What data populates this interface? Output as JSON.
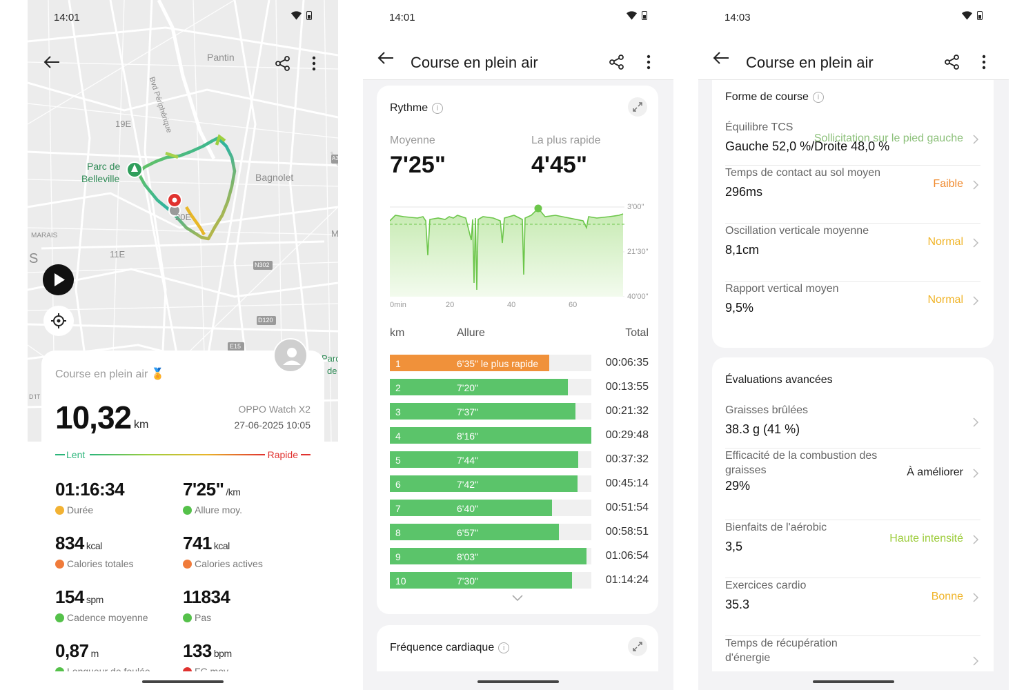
{
  "status": {
    "p1_time": "14:01",
    "p2_time": "14:01",
    "p3_time": "14:03"
  },
  "screen1": {
    "map_labels": {
      "pantin": "Pantin",
      "blvd": "Bvd Périphérique",
      "e19": "19E",
      "parc": "Parc de",
      "belleville": "Belleville",
      "bagnolet": "Bagnolet",
      "e20": "20E",
      "marais": "MARAIS",
      "s": "S",
      "e11": "11E",
      "n302": "N302",
      "d120": "D120",
      "e15": "E15",
      "m": "M",
      "a3": "A3",
      "parc_r": "Parc",
      "de_r": "de",
      "dit": "D'IT"
    },
    "card": {
      "title": "Course en plein air",
      "distance": "10,32",
      "distance_unit": "km",
      "device": "OPPO Watch X2",
      "date": "27-06-2025 10:05",
      "slow": "Lent",
      "fast": "Rapide"
    },
    "stats": [
      {
        "value": "01:16:34",
        "unit": "",
        "label": "Durée",
        "icon": "medal-icon",
        "color": "#f2b233"
      },
      {
        "value": "7'25\"",
        "unit": "/km",
        "label": "Allure moy.",
        "icon": "check-icon",
        "color": "#55c14a"
      },
      {
        "value": "834",
        "unit": "kcal",
        "label": "Calories totales",
        "icon": "flame-icon",
        "color": "#f07b3a"
      },
      {
        "value": "741",
        "unit": "kcal",
        "label": "Calories actives",
        "icon": "flame-icon",
        "color": "#f07b3a"
      },
      {
        "value": "154",
        "unit": "spm",
        "label": "Cadence moyenne",
        "icon": "footsteps-icon",
        "color": "#55c14a"
      },
      {
        "value": "11834",
        "unit": "",
        "label": "Pas",
        "icon": "shoe-icon",
        "color": "#55c14a"
      },
      {
        "value": "0,87",
        "unit": "m",
        "label": "Longueur de foulée",
        "icon": "ruler-icon",
        "color": "#55c14a"
      },
      {
        "value": "133",
        "unit": "bpm",
        "label": "FC moy.",
        "icon": "heart-icon",
        "color": "#e0322f"
      }
    ]
  },
  "screen2": {
    "title": "Course en plein air",
    "pace": {
      "heading": "Rythme",
      "avg_label": "Moyenne",
      "avg_value": "7'25\"",
      "fast_label": "La plus rapide",
      "fast_value": "4'45\"",
      "y_ticks": [
        "3'00\"",
        "21'30\"",
        "40'00\""
      ],
      "x_ticks": [
        "0min",
        "20",
        "40",
        "60"
      ]
    },
    "table": {
      "col_km": "km",
      "col_pace": "Allure",
      "col_total": "Total",
      "rows": [
        {
          "km": "1",
          "pace": "6'35\" le plus rapide",
          "total": "00:06:35",
          "fill": 0.79,
          "color": "#f0913a"
        },
        {
          "km": "2",
          "pace": "7'20\"",
          "total": "00:13:55",
          "fill": 0.885,
          "color": "#5bc46a"
        },
        {
          "km": "3",
          "pace": "7'37\"",
          "total": "00:21:32",
          "fill": 0.92,
          "color": "#5bc46a"
        },
        {
          "km": "4",
          "pace": "8'16\"",
          "total": "00:29:48",
          "fill": 1.0,
          "color": "#5bc46a"
        },
        {
          "km": "5",
          "pace": "7'44\"",
          "total": "00:37:32",
          "fill": 0.935,
          "color": "#5bc46a"
        },
        {
          "km": "6",
          "pace": "7'42\"",
          "total": "00:45:14",
          "fill": 0.93,
          "color": "#5bc46a"
        },
        {
          "km": "7",
          "pace": "6'40\"",
          "total": "00:51:54",
          "fill": 0.805,
          "color": "#5bc46a"
        },
        {
          "km": "8",
          "pace": "6'57\"",
          "total": "00:58:51",
          "fill": 0.84,
          "color": "#5bc46a"
        },
        {
          "km": "9",
          "pace": "8'03\"",
          "total": "01:06:54",
          "fill": 0.975,
          "color": "#5bc46a"
        },
        {
          "km": "10",
          "pace": "7'30\"",
          "total": "01:14:24",
          "fill": 0.905,
          "color": "#5bc46a"
        }
      ]
    },
    "heart_heading": "Fréquence cardiaque"
  },
  "screen3": {
    "title": "Course en plein air",
    "form_heading": "Forme de course",
    "form_items": [
      {
        "label": "Équilibre TCS",
        "value": "Gauche 52,0 %/Droite 48,0 %",
        "status": "Sollicitation sur le pied gauche",
        "color": "#8cc07a"
      },
      {
        "label": "Temps de contact au sol moyen",
        "value": "296ms",
        "status": "Faible",
        "color": "#f08a2e"
      },
      {
        "label": "Oscillation verticale moyenne",
        "value": "8,1cm",
        "status": "Normal",
        "color": "#f0b429"
      },
      {
        "label": "Rapport vertical moyen",
        "value": "9,5%",
        "status": "Normal",
        "color": "#f0b429"
      }
    ],
    "adv_heading": "Évaluations avancées",
    "adv_items": [
      {
        "label": "Graisses brûlées",
        "value": "38.3 g (41 %)",
        "status": "",
        "color": "#1a1a1a"
      },
      {
        "label": "Efficacité de la combustion des graisses",
        "value": "29%",
        "status": "À améliorer",
        "color": "#1a1a1a"
      },
      {
        "label": "Bienfaits de l'aérobic",
        "value": "3,5",
        "status": "Haute intensité",
        "color": "#9ccc3a"
      },
      {
        "label": "Exercices cardio",
        "value": "35.3",
        "status": "Bonne",
        "color": "#f0b429"
      },
      {
        "label": "Temps de récupération d'énergie",
        "value": "",
        "status": "",
        "color": "#1a1a1a"
      }
    ]
  }
}
